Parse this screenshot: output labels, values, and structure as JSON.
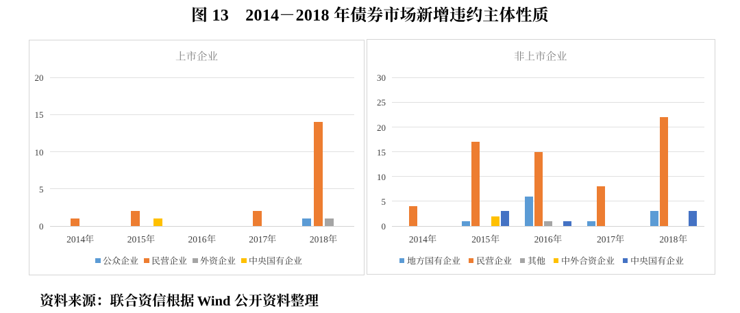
{
  "figure_title": "图 13　2014－2018 年债券市场新增违约主体性质",
  "source_note": "资料来源：联合资信根据 Wind 公开资料整理",
  "palette": {
    "blue": "#5B9BD5",
    "orange": "#ED7D31",
    "gray": "#A5A5A5",
    "yellow": "#FFC000",
    "dark_blue": "#4472C4"
  },
  "chart_data": [
    {
      "type": "bar",
      "title": "上市企业",
      "categories": [
        "2014年",
        "2015年",
        "2016年",
        "2017年",
        "2018年"
      ],
      "series": [
        {
          "name": "公众企业",
          "color": "#5B9BD5",
          "values": [
            0,
            0,
            0,
            0,
            1
          ]
        },
        {
          "name": "民营企业",
          "color": "#ED7D31",
          "values": [
            1,
            2,
            0,
            2,
            14
          ]
        },
        {
          "name": "外资企业",
          "color": "#A5A5A5",
          "values": [
            0,
            0,
            0,
            0,
            1
          ]
        },
        {
          "name": "中央国有企业",
          "color": "#FFC000",
          "values": [
            0,
            1,
            0,
            0,
            0
          ]
        }
      ],
      "ylim": [
        0,
        20
      ],
      "ytick_step": 5,
      "yticks": [
        0,
        5,
        10,
        15,
        20
      ],
      "grid": true,
      "legend_position": "bottom"
    },
    {
      "type": "bar",
      "title": "非上市企业",
      "categories": [
        "2014年",
        "2015年",
        "2016年",
        "2017年",
        "2018年"
      ],
      "series": [
        {
          "name": "地方国有企业",
          "color": "#5B9BD5",
          "values": [
            0,
            1,
            6,
            1,
            3
          ]
        },
        {
          "name": "民营企业",
          "color": "#ED7D31",
          "values": [
            4,
            17,
            15,
            8,
            22
          ]
        },
        {
          "name": "其他",
          "color": "#A5A5A5",
          "values": [
            0,
            0,
            1,
            0,
            0
          ]
        },
        {
          "name": "中外合资企业",
          "color": "#FFC000",
          "values": [
            0,
            2,
            0,
            0,
            0
          ]
        },
        {
          "name": "中央国有企业",
          "color": "#4472C4",
          "values": [
            0,
            3,
            1,
            0,
            3
          ]
        }
      ],
      "ylim": [
        0,
        30
      ],
      "ytick_step": 5,
      "yticks": [
        0,
        5,
        10,
        15,
        20,
        25,
        30
      ],
      "grid": true,
      "legend_position": "bottom"
    }
  ]
}
